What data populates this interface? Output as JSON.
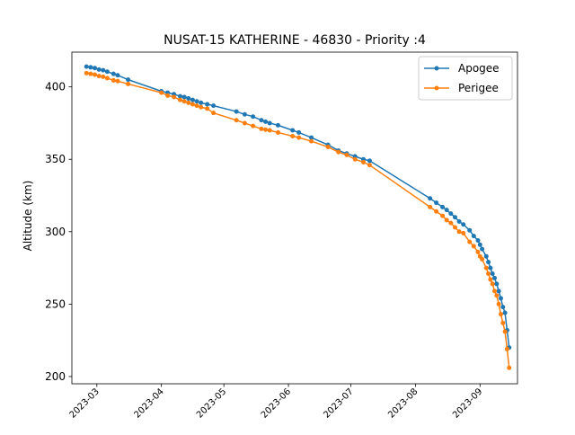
{
  "chart_data": {
    "type": "line",
    "title": "NUSAT-15 KATHERINE - 46830 - Priority :4",
    "xlabel": "",
    "ylabel": "Altitude (km)",
    "ylim": [
      195,
      424
    ],
    "xlim": [
      "2023-02-17",
      "2023-09-19"
    ],
    "x_ticks": [
      "2023-03",
      "2023-04",
      "2023-05",
      "2023-06",
      "2023-07",
      "2023-08",
      "2023-09"
    ],
    "y_ticks": [
      200,
      250,
      300,
      350,
      400
    ],
    "grid": false,
    "legend": "top-right",
    "series": [
      {
        "name": "Apogee",
        "color": "#1f77b4",
        "points": [
          [
            "2023-02-24",
            414
          ],
          [
            "2023-02-26",
            413.5
          ],
          [
            "2023-02-28",
            413
          ],
          [
            "2023-03-02",
            412
          ],
          [
            "2023-03-04",
            411.5
          ],
          [
            "2023-03-06",
            410.5
          ],
          [
            "2023-03-09",
            409
          ],
          [
            "2023-03-11",
            408
          ],
          [
            "2023-03-16",
            405
          ],
          [
            "2023-04-01",
            397
          ],
          [
            "2023-04-04",
            396
          ],
          [
            "2023-04-07",
            395
          ],
          [
            "2023-04-10",
            393.5
          ],
          [
            "2023-04-12",
            393
          ],
          [
            "2023-04-14",
            392
          ],
          [
            "2023-04-16",
            391
          ],
          [
            "2023-04-18",
            390
          ],
          [
            "2023-04-20",
            389
          ],
          [
            "2023-04-23",
            388
          ],
          [
            "2023-04-26",
            387
          ],
          [
            "2023-05-07",
            383
          ],
          [
            "2023-05-11",
            381
          ],
          [
            "2023-05-15",
            379.5
          ],
          [
            "2023-05-19",
            377
          ],
          [
            "2023-05-21",
            376
          ],
          [
            "2023-05-23",
            375
          ],
          [
            "2023-05-27",
            373.5
          ],
          [
            "2023-06-03",
            370
          ],
          [
            "2023-06-06",
            368.5
          ],
          [
            "2023-06-12",
            365
          ],
          [
            "2023-06-20",
            360
          ],
          [
            "2023-06-25",
            356
          ],
          [
            "2023-06-29",
            354
          ],
          [
            "2023-07-03",
            352
          ],
          [
            "2023-07-07",
            350
          ],
          [
            "2023-07-10",
            349
          ],
          [
            "2023-08-08",
            323
          ],
          [
            "2023-08-11",
            320
          ],
          [
            "2023-08-14",
            317
          ],
          [
            "2023-08-16",
            315
          ],
          [
            "2023-08-18",
            312.5
          ],
          [
            "2023-08-20",
            310
          ],
          [
            "2023-08-22",
            307
          ],
          [
            "2023-08-24",
            305
          ],
          [
            "2023-08-27",
            301
          ],
          [
            "2023-08-29",
            297
          ],
          [
            "2023-08-31",
            294
          ],
          [
            "2023-09-01",
            291
          ],
          [
            "2023-09-02",
            288
          ],
          [
            "2023-09-04",
            283
          ],
          [
            "2023-09-05",
            279
          ],
          [
            "2023-09-06",
            275
          ],
          [
            "2023-09-07",
            271
          ],
          [
            "2023-09-08",
            268
          ],
          [
            "2023-09-09",
            264
          ],
          [
            "2023-09-10",
            259
          ],
          [
            "2023-09-11",
            254
          ],
          [
            "2023-09-12",
            248
          ],
          [
            "2023-09-13",
            244
          ],
          [
            "2023-09-14",
            232
          ],
          [
            "2023-09-15",
            220
          ]
        ]
      },
      {
        "name": "Perigee",
        "color": "#ff7f0e",
        "points": [
          [
            "2023-02-24",
            409.5
          ],
          [
            "2023-02-26",
            409
          ],
          [
            "2023-02-28",
            408.5
          ],
          [
            "2023-03-02",
            407.5
          ],
          [
            "2023-03-04",
            407
          ],
          [
            "2023-03-06",
            406
          ],
          [
            "2023-03-09",
            404.5
          ],
          [
            "2023-03-11",
            404
          ],
          [
            "2023-03-16",
            402
          ],
          [
            "2023-04-01",
            396
          ],
          [
            "2023-04-04",
            394
          ],
          [
            "2023-04-07",
            393
          ],
          [
            "2023-04-10",
            391
          ],
          [
            "2023-04-12",
            390
          ],
          [
            "2023-04-14",
            389
          ],
          [
            "2023-04-16",
            388
          ],
          [
            "2023-04-18",
            387
          ],
          [
            "2023-04-20",
            386
          ],
          [
            "2023-04-23",
            385
          ],
          [
            "2023-04-26",
            382
          ],
          [
            "2023-05-07",
            377
          ],
          [
            "2023-05-11",
            375
          ],
          [
            "2023-05-15",
            373
          ],
          [
            "2023-05-19",
            371
          ],
          [
            "2023-05-21",
            370.5
          ],
          [
            "2023-05-23",
            370
          ],
          [
            "2023-05-27",
            368.5
          ],
          [
            "2023-06-03",
            366
          ],
          [
            "2023-06-06",
            365
          ],
          [
            "2023-06-12",
            362.5
          ],
          [
            "2023-06-20",
            358.5
          ],
          [
            "2023-06-25",
            355
          ],
          [
            "2023-06-29",
            353
          ],
          [
            "2023-07-03",
            350
          ],
          [
            "2023-07-07",
            348
          ],
          [
            "2023-07-10",
            346
          ],
          [
            "2023-08-08",
            317
          ],
          [
            "2023-08-11",
            314
          ],
          [
            "2023-08-14",
            311
          ],
          [
            "2023-08-16",
            308
          ],
          [
            "2023-08-18",
            306
          ],
          [
            "2023-08-20",
            303
          ],
          [
            "2023-08-22",
            300
          ],
          [
            "2023-08-24",
            299
          ],
          [
            "2023-08-27",
            293
          ],
          [
            "2023-08-29",
            290
          ],
          [
            "2023-08-31",
            286
          ],
          [
            "2023-09-01",
            283
          ],
          [
            "2023-09-02",
            281
          ],
          [
            "2023-09-04",
            275
          ],
          [
            "2023-09-05",
            271
          ],
          [
            "2023-09-06",
            267
          ],
          [
            "2023-09-07",
            264
          ],
          [
            "2023-09-08",
            259
          ],
          [
            "2023-09-09",
            256
          ],
          [
            "2023-09-10",
            250
          ],
          [
            "2023-09-11",
            243
          ],
          [
            "2023-09-12",
            237
          ],
          [
            "2023-09-13",
            231
          ],
          [
            "2023-09-14",
            219
          ],
          [
            "2023-09-15",
            206
          ]
        ]
      }
    ]
  }
}
